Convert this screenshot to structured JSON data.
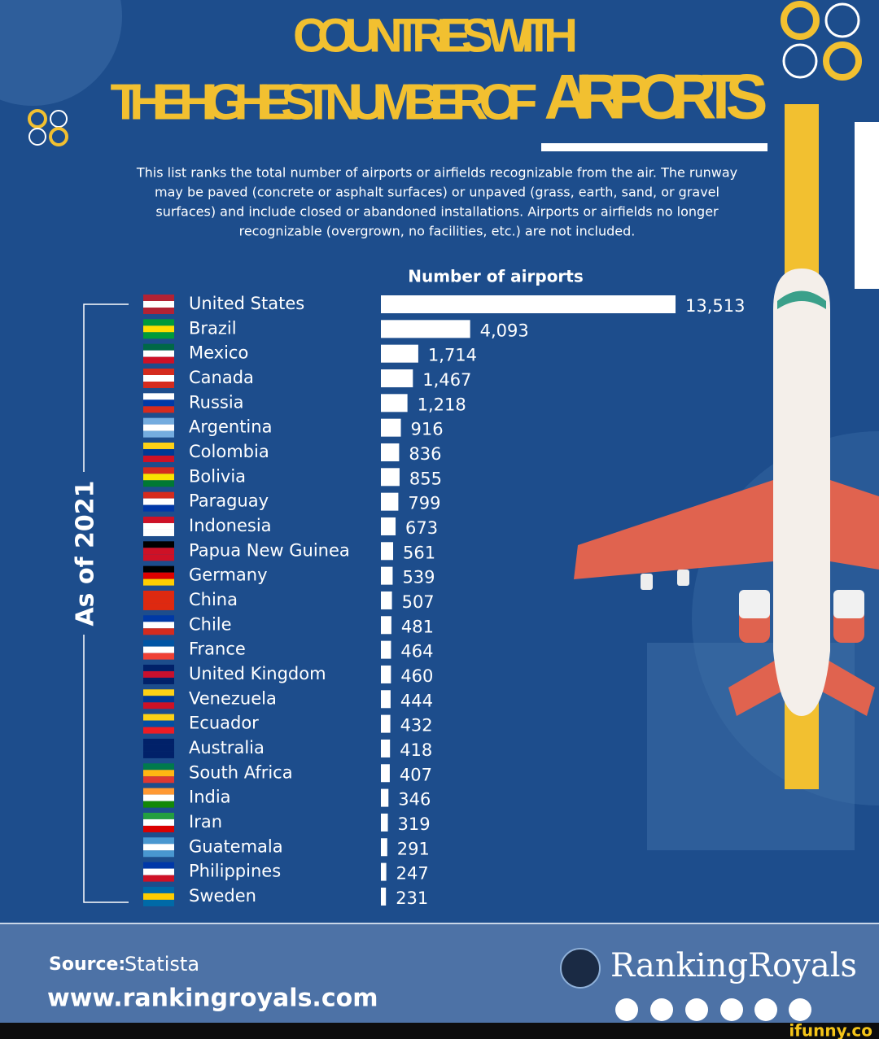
{
  "chart_data": {
    "type": "bar",
    "orientation": "horizontal",
    "title_line1": "COUNTRIES WITH",
    "title_line2": "THE HIGHEST NUMBER OF",
    "title_highlight": "AIRPORTS",
    "description": [
      "This list ranks the total number of airports or airfields recognizable from the air. The runway",
      "may be paved (concrete or asphalt surfaces) or unpaved (grass, earth, sand, or gravel",
      "surfaces) and include closed or abandoned installations. Airports or airfields no longer",
      "recognizable (overgrown, no facilities, etc.) are not included."
    ],
    "value_axis_label": "Number of airports",
    "side_label": "As of 2021",
    "categories": [
      "United States",
      "Brazil",
      "Mexico",
      "Canada",
      "Russia",
      "Argentina",
      "Colombia",
      "Bolivia",
      "Paraguay",
      "Indonesia",
      "Papua New Guinea",
      "Germany",
      "China",
      "Chile",
      "France",
      "United Kingdom",
      "Venezuela",
      "Ecuador",
      "Australia",
      "South Africa",
      "India",
      "Iran",
      "Guatemala",
      "Philippines",
      "Sweden"
    ],
    "values": [
      13513,
      4093,
      1714,
      1467,
      1218,
      916,
      836,
      855,
      799,
      673,
      561,
      539,
      507,
      481,
      464,
      460,
      444,
      432,
      418,
      407,
      346,
      319,
      291,
      247,
      231
    ],
    "value_labels": [
      "13,513",
      "4,093",
      "1,714",
      "1,467",
      "1,218",
      "916",
      "836",
      "855",
      "799",
      "673",
      "561",
      "539",
      "507",
      "481",
      "464",
      "460",
      "444",
      "432",
      "418",
      "407",
      "346",
      "319",
      "291",
      "247",
      "231"
    ],
    "color": "#ffffff",
    "source_label": "Source:",
    "source": "Statista",
    "url": "www.rankingroyals.com",
    "brand": "RankingRoyals",
    "watermark": "ifunny.co"
  }
}
